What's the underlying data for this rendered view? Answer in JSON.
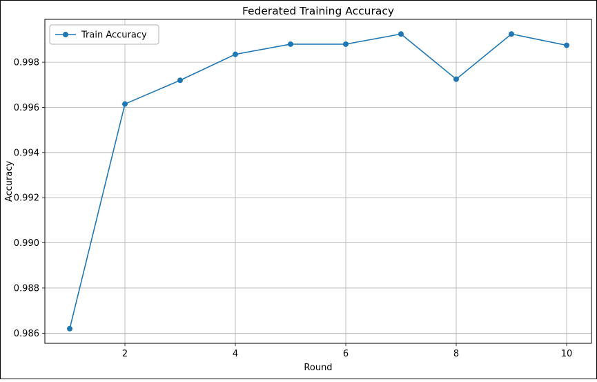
{
  "figure": {
    "background_color": "#ffffff",
    "border_color": "#000000"
  },
  "chart_data": {
    "type": "line",
    "title": "Federated Training Accuracy",
    "xlabel": "Round",
    "ylabel": "Accuracy",
    "x": [
      1,
      2,
      3,
      4,
      5,
      6,
      7,
      8,
      9,
      10
    ],
    "series": [
      {
        "name": "Train Accuracy",
        "color": "#1f77b4",
        "marker": "circle",
        "values": [
          0.9862,
          0.99615,
          0.9972,
          0.99835,
          0.9988,
          0.9988,
          0.99925,
          0.99725,
          0.99925,
          0.99875
        ]
      }
    ],
    "xlim": [
      0.55,
      10.45
    ],
    "ylim": [
      0.98555,
      0.9999
    ],
    "xticks": [
      2,
      4,
      6,
      8,
      10
    ],
    "yticks": [
      0.986,
      0.988,
      0.99,
      0.992,
      0.994,
      0.996,
      0.998
    ],
    "ytick_labels": [
      "0.986",
      "0.988",
      "0.990",
      "0.992",
      "0.994",
      "0.996",
      "0.998"
    ],
    "grid": true,
    "grid_color": "#b0b0b0",
    "axes_color": "#000000",
    "legend": {
      "position": "upper left",
      "entries": [
        "Train Accuracy"
      ]
    }
  }
}
